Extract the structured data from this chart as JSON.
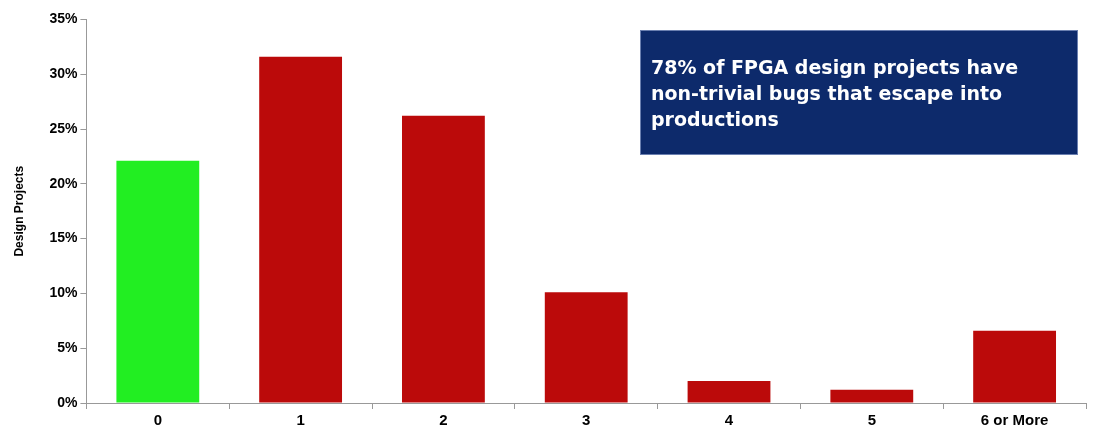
{
  "chart_data": {
    "type": "bar",
    "ylabel": "Design Projects",
    "categories": [
      "0",
      "1",
      "2",
      "3",
      "4",
      "5",
      "6 or More"
    ],
    "values": [
      22.1,
      31.6,
      26.2,
      10.1,
      2.0,
      1.2,
      6.6
    ],
    "colors": [
      "#22ee22",
      "#bb0a0a",
      "#bb0a0a",
      "#bb0a0a",
      "#bb0a0a",
      "#bb0a0a",
      "#bb0a0a"
    ],
    "ylim": [
      0,
      35
    ],
    "yticks": [
      {
        "value": 0,
        "label": "0%"
      },
      {
        "value": 5,
        "label": "5%"
      },
      {
        "value": 10,
        "label": "10%"
      },
      {
        "value": 15,
        "label": "15%"
      },
      {
        "value": 20,
        "label": "20%"
      },
      {
        "value": 25,
        "label": "25%"
      },
      {
        "value": 30,
        "label": "30%"
      },
      {
        "value": 35,
        "label": "35%"
      }
    ],
    "grid": false,
    "annotations": [
      "78% of FPGA design projects have non-trivial bugs that escape into productions"
    ]
  }
}
